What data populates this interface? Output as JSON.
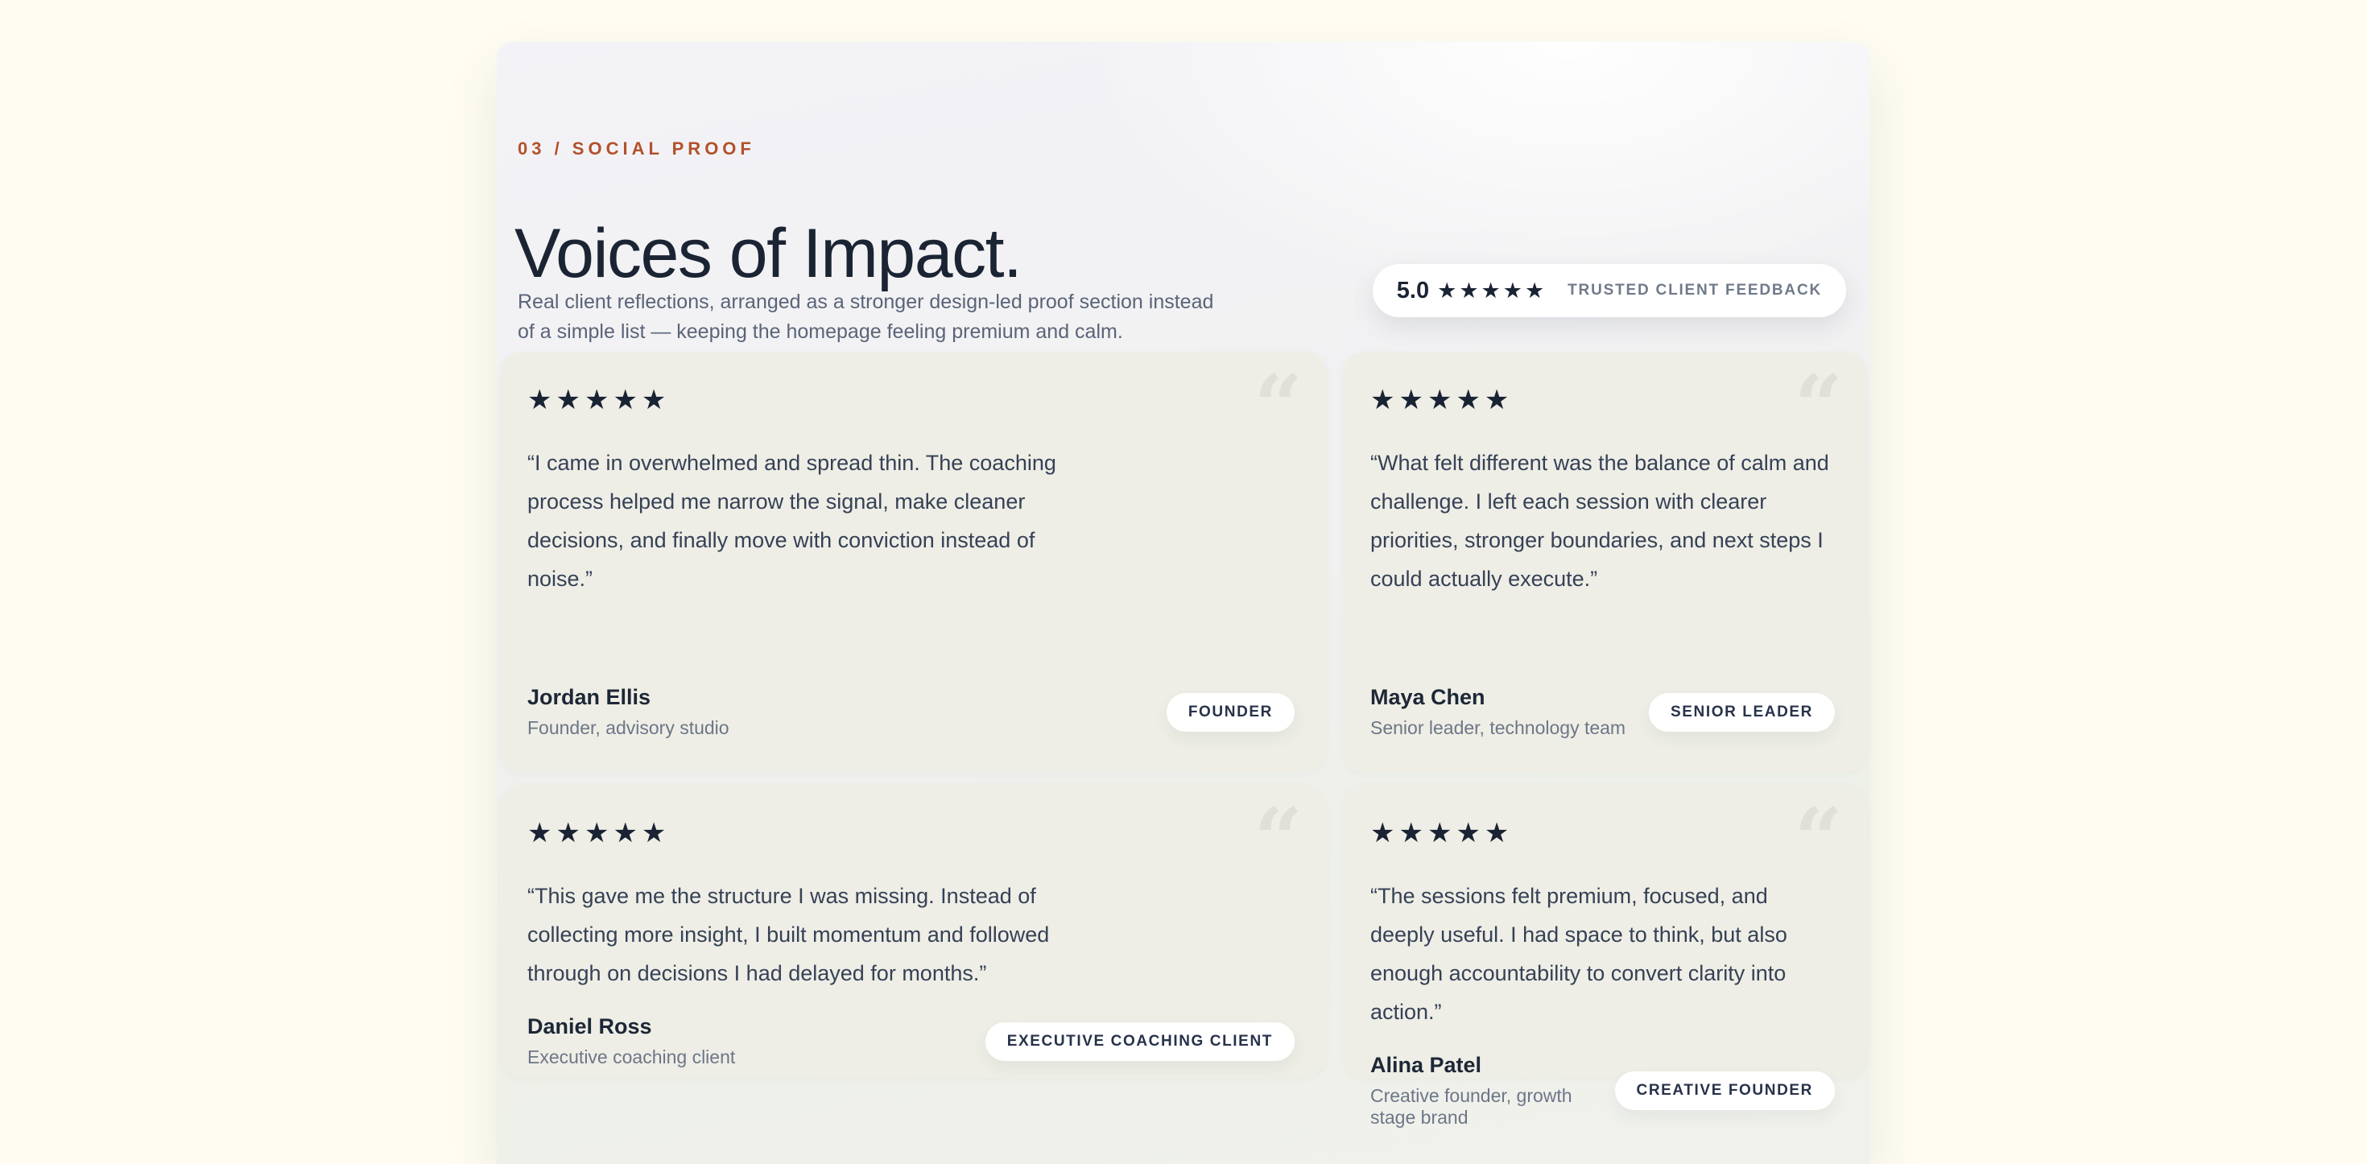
{
  "colors": {
    "page_background": "#FFFDF1",
    "panel_top": "#F3F3F7",
    "panel_bottom": "#EFF0EA",
    "card_background": "#EEEEE6",
    "accent_orange": "#B2512A",
    "ink_navy": "#1B2433",
    "quote_text": "#364156",
    "muted_gray": "#6D7687",
    "quote_icon_gray": "#E0E0D8"
  },
  "icons": {
    "quote": "“",
    "star": "★"
  },
  "header": {
    "eyebrow": "03 / SOCIAL PROOF",
    "title": "Voices of Impact.",
    "subtitle": "Real client reflections, arranged as a stronger design-led proof section instead of a simple list — keeping the homepage feeling premium and calm."
  },
  "rating_badge": {
    "score": "5.0",
    "stars": "★★★★★",
    "label": "TRUSTED CLIENT FEEDBACK"
  },
  "testimonials": [
    {
      "stars": "★★★★★",
      "quote": "“I came in overwhelmed and spread thin. The coaching process helped me narrow the signal, make cleaner decisions, and finally move with conviction instead of noise.”",
      "name": "Jordan Ellis",
      "role": "Founder, advisory studio",
      "badge": "FOUNDER"
    },
    {
      "stars": "★★★★★",
      "quote": "“What felt different was the balance of calm and challenge. I left each session with clearer priorities, stronger boundaries, and next steps I could actually execute.”",
      "name": "Maya Chen",
      "role": "Senior leader, technology team",
      "badge": "SENIOR LEADER"
    },
    {
      "stars": "★★★★★",
      "quote": "“This gave me the structure I was missing. Instead of collecting more insight, I built momentum and followed through on decisions I had delayed for months.”",
      "name": "Daniel Ross",
      "role": "Executive coaching client",
      "badge": "EXECUTIVE COACHING CLIENT"
    },
    {
      "stars": "★★★★★",
      "quote": "“The sessions felt premium, focused, and deeply useful. I had space to think, but also enough accountability to convert clarity into action.”",
      "name": "Alina Patel",
      "role": "Creative founder, growth stage brand",
      "badge": "CREATIVE FOUNDER"
    }
  ]
}
